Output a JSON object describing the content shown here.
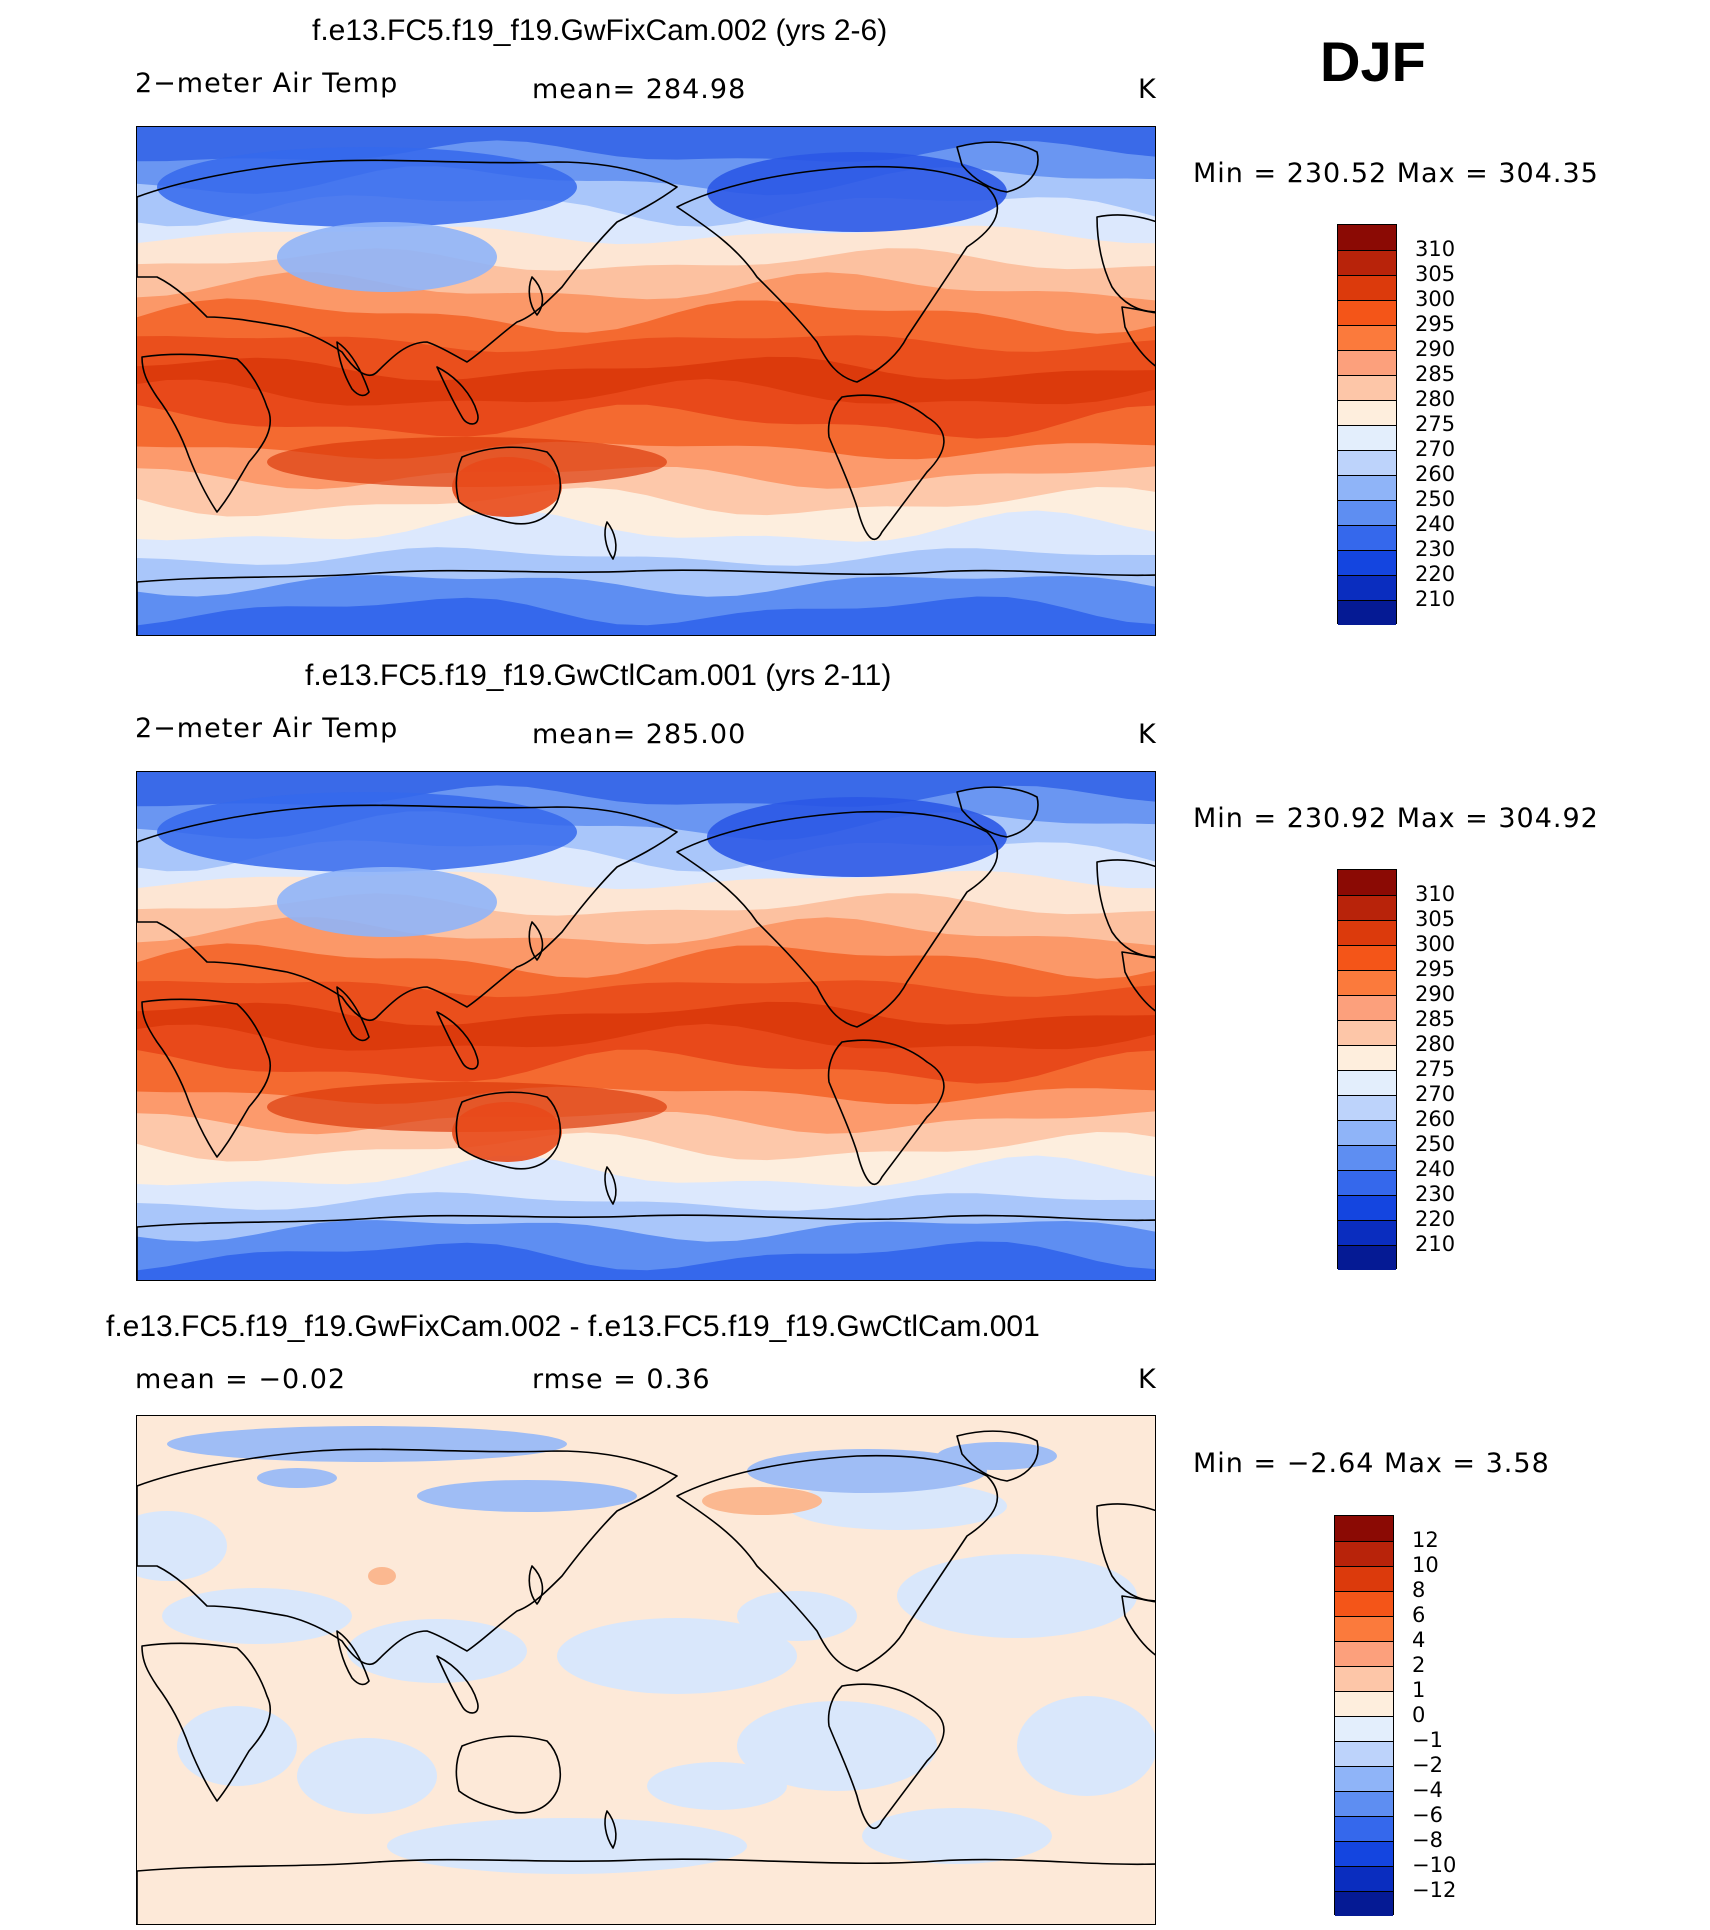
{
  "season": "DJF",
  "panels": [
    {
      "title": "f.e13.FC5.f19_f19.GwFixCam.002 (yrs 2-6)",
      "left_label": "2−meter Air Temp",
      "center_label": "mean=  284.98",
      "units": "K",
      "minmax": "Min  =  230.52  Max  =  304.35",
      "kind": "abs"
    },
    {
      "title": "f.e13.FC5.f19_f19.GwCtlCam.001 (yrs 2-11)",
      "left_label": "2−meter Air Temp",
      "center_label": "mean=  285.00",
      "units": "K",
      "minmax": "Min  =  230.92  Max  =  304.92",
      "kind": "abs"
    },
    {
      "title": "f.e13.FC5.f19_f19.GwFixCam.002 - f.e13.FC5.f19_f19.GwCtlCam.001",
      "left_label": "mean  =    −0.02",
      "center_label": "rmse  =     0.36",
      "units": "K",
      "minmax": "Min  =    −2.64  Max  =     3.58",
      "kind": "diff"
    }
  ],
  "colorbars": {
    "abs": {
      "labels": [
        "310",
        "305",
        "300",
        "295",
        "290",
        "285",
        "280",
        "275",
        "270",
        "260",
        "250",
        "240",
        "230",
        "220",
        "210"
      ],
      "colors": [
        "#8b0a04",
        "#b8230a",
        "#dc3a0c",
        "#f45518",
        "#fb7a3c",
        "#fca07c",
        "#fdc6a8",
        "#feeedd",
        "#e3eefc",
        "#bdd3fb",
        "#8fb4f8",
        "#5e8ef2",
        "#3568ec",
        "#1445e0",
        "#0a2dbf",
        "#051a94"
      ]
    },
    "diff": {
      "labels": [
        "12",
        "10",
        "8",
        "6",
        "4",
        "2",
        "1",
        "0",
        "−1",
        "−2",
        "−4",
        "−6",
        "−8",
        "−10",
        "−12"
      ],
      "colors": [
        "#8b0a04",
        "#b8230a",
        "#dc3a0c",
        "#f45518",
        "#fb7a3c",
        "#fca07c",
        "#fdc6a8",
        "#feeedd",
        "#e3eefc",
        "#bdd3fb",
        "#8fb4f8",
        "#5e8ef2",
        "#3568ec",
        "#1445e0",
        "#0a2dbf",
        "#051a94"
      ]
    }
  },
  "map_style": {
    "abs_bands": [
      "#3a6ae8",
      "#6a96f2",
      "#a9c6fa",
      "#dce8fd",
      "#fde6d4",
      "#fcc1a0",
      "#fb9868",
      "#f46a30",
      "#ea4f1c",
      "#dc3a0c",
      "#e8491a",
      "#f46a30",
      "#fc9a6c",
      "#fdc8aa",
      "#fdeede",
      "#dce8fd",
      "#a9c6fa",
      "#5e8ef2",
      "#3568ec"
    ],
    "diff_base": "#fde9d8",
    "diff_cool": "#d9e7fb",
    "diff_cold": "#9fbdf5",
    "diff_warm": "#fbb890",
    "coast": "#000000"
  }
}
